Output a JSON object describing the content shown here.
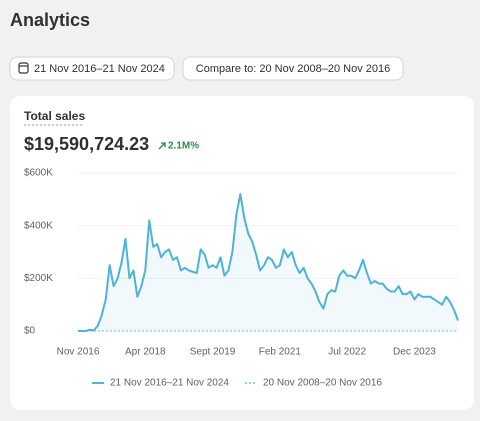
{
  "header": {
    "title": "Analytics"
  },
  "date_range": "21 Nov 2016–21 Nov 2024",
  "compare_button": "Compare to: 20 Nov 2008–20 Nov 2016",
  "card": {
    "title": "Total sales",
    "total": "$19,590,724.23",
    "change": "2.1M%"
  },
  "chart_data": {
    "type": "line",
    "categories": [
      "Nov 2016",
      null,
      null,
      null,
      null,
      null,
      null,
      null,
      null,
      null,
      null,
      null,
      null,
      null,
      null,
      null,
      null,
      "Apr 2018",
      null,
      null,
      null,
      null,
      null,
      null,
      null,
      null,
      null,
      null,
      null,
      null,
      null,
      null,
      null,
      null,
      "Sept 2019",
      null,
      null,
      null,
      null,
      null,
      null,
      null,
      null,
      null,
      null,
      null,
      null,
      null,
      null,
      null,
      null,
      "Feb 2021",
      null,
      null,
      null,
      null,
      null,
      null,
      null,
      null,
      null,
      null,
      null,
      null,
      null,
      null,
      null,
      null,
      "Jul 2022",
      null,
      null,
      null,
      null,
      null,
      null,
      null,
      null,
      null,
      null,
      null,
      null,
      null,
      null,
      null,
      null,
      "Dec 2023",
      null,
      null,
      null,
      null,
      null,
      null,
      null,
      null,
      null,
      null,
      null
    ],
    "series": [
      {
        "name": "21 Nov 2016–21 Nov 2024",
        "color": "#4db3d8",
        "dashed": false,
        "values": [
          0,
          0,
          0,
          5000,
          2000,
          20000,
          60000,
          120000,
          250000,
          170000,
          200000,
          260000,
          350000,
          200000,
          230000,
          130000,
          170000,
          230000,
          420000,
          320000,
          330000,
          280000,
          300000,
          310000,
          270000,
          280000,
          230000,
          240000,
          230000,
          225000,
          220000,
          310000,
          290000,
          240000,
          250000,
          240000,
          280000,
          210000,
          230000,
          300000,
          440000,
          520000,
          430000,
          370000,
          340000,
          290000,
          230000,
          250000,
          280000,
          270000,
          240000,
          250000,
          310000,
          280000,
          300000,
          250000,
          220000,
          240000,
          200000,
          180000,
          150000,
          110000,
          85000,
          140000,
          155000,
          150000,
          210000,
          230000,
          210000,
          210000,
          200000,
          230000,
          270000,
          220000,
          180000,
          190000,
          180000,
          180000,
          160000,
          150000,
          150000,
          170000,
          140000,
          140000,
          150000,
          120000,
          140000,
          130000,
          130000,
          130000,
          120000,
          110000,
          100000,
          130000,
          110000,
          80000,
          40000
        ]
      },
      {
        "name": "20 Nov 2008–20 Nov 2016",
        "color": "#8fcde4",
        "dashed": true,
        "values": [
          0,
          0,
          0,
          0,
          0,
          0,
          0,
          0,
          0,
          0,
          0,
          0,
          0,
          0,
          0,
          0,
          0,
          0,
          0,
          0,
          0,
          0,
          0,
          0,
          0,
          0,
          0,
          0,
          0,
          0,
          0,
          0,
          0,
          0,
          0,
          0,
          0,
          0,
          0,
          0,
          0,
          0,
          0,
          0,
          0,
          0,
          0,
          0,
          0,
          0,
          0,
          0,
          0,
          0,
          0,
          0,
          0,
          0,
          0,
          0,
          0,
          0,
          0,
          0,
          0,
          0,
          0,
          0,
          0,
          0,
          0,
          0,
          0,
          0,
          0,
          0,
          0,
          0,
          0,
          0,
          0,
          0,
          0,
          0,
          0,
          0,
          0,
          0,
          0,
          0,
          0,
          0,
          0,
          0,
          0,
          0,
          0
        ]
      }
    ],
    "ylim": [
      0,
      600000
    ],
    "yticks": [
      {
        "value": 0,
        "label": "$0"
      },
      {
        "value": 200000,
        "label": "$200K"
      },
      {
        "value": 400000,
        "label": "$400K"
      },
      {
        "value": 600000,
        "label": "$600K"
      }
    ],
    "grid": true
  }
}
